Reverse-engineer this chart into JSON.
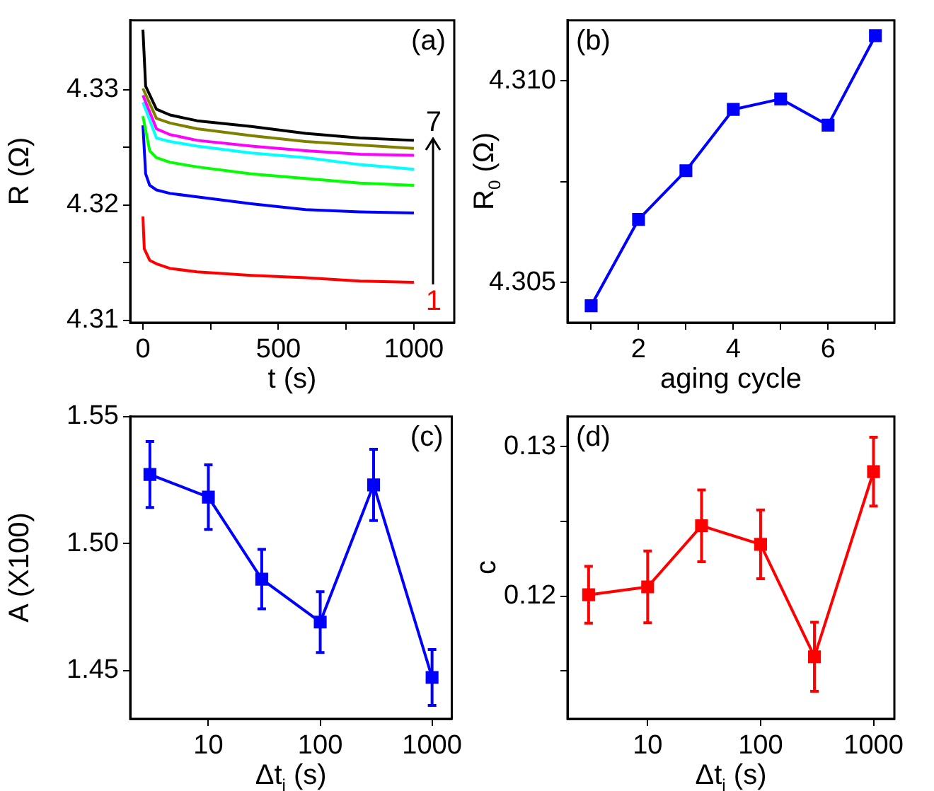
{
  "chart_data": [
    {
      "type": "line",
      "xlabel": "t (s)",
      "ylabel": "R (Ω)",
      "annotations": [
        "(a)"
      ],
      "marker": "none",
      "line_style": "solid",
      "grid": false,
      "xlim": [
        -47,
        1149
      ],
      "xticks": [
        0,
        {
          "value": 250,
          "label": null
        },
        500,
        {
          "value": 750,
          "label": null
        },
        1000
      ],
      "ylim": [
        4.3098,
        4.336
      ],
      "yticks": [
        4.31,
        {
          "value": 4.315,
          "label": null
        },
        4.32,
        {
          "value": 4.325,
          "label": null
        },
        4.33
      ],
      "series": [
        {
          "name": "7",
          "color": "#000000",
          "x": [
            0,
            10,
            50,
            100,
            200,
            400,
            600,
            800,
            1000
          ],
          "values": [
            4.3352,
            4.3303,
            4.3283,
            4.3278,
            4.3273,
            4.3268,
            4.3262,
            4.3258,
            4.3256
          ]
        },
        {
          "color": "#808000",
          "x": [
            0,
            50,
            100,
            200,
            400,
            600,
            800,
            1000
          ],
          "values": [
            4.3301,
            4.3275,
            4.3271,
            4.3266,
            4.326,
            4.3255,
            4.3252,
            4.3249
          ]
        },
        {
          "color": "#ff00ff",
          "x": [
            0,
            50,
            100,
            200,
            400,
            600,
            800,
            1000
          ],
          "values": [
            4.3295,
            4.3266,
            4.3261,
            4.3256,
            4.3251,
            4.3247,
            4.3244,
            4.3243
          ]
        },
        {
          "color": "#00ffff",
          "x": [
            0,
            50,
            100,
            200,
            400,
            600,
            800,
            1000
          ],
          "values": [
            4.3289,
            4.3258,
            4.3255,
            4.3251,
            4.3245,
            4.3241,
            4.3235,
            4.3231
          ]
        },
        {
          "color": "#00ff00",
          "x": [
            0,
            25,
            50,
            100,
            200,
            400,
            600,
            800,
            1000
          ],
          "values": [
            4.3277,
            4.3247,
            4.3241,
            4.3237,
            4.3233,
            4.3227,
            4.3223,
            4.3219,
            4.3217
          ]
        },
        {
          "color": "#0000ff",
          "x": [
            0,
            10,
            25,
            50,
            100,
            200,
            400,
            600,
            800,
            1000
          ],
          "values": [
            4.3269,
            4.3227,
            4.3217,
            4.3213,
            4.321,
            4.3207,
            4.3201,
            4.3196,
            4.3194,
            4.3193
          ]
        },
        {
          "name": "1",
          "color": "#ff0000",
          "x": [
            0,
            5,
            25,
            50,
            100,
            200,
            400,
            600,
            800,
            1000
          ],
          "values": [
            4.319,
            4.3162,
            4.3152,
            4.3149,
            4.3145,
            4.3142,
            4.3139,
            4.3137,
            4.3134,
            4.3133
          ]
        }
      ]
    },
    {
      "type": "line",
      "xlabel": "aging cycle",
      "ylabel": "R$_{0}$ (Ω)",
      "annotations": [
        "(b)"
      ],
      "marker": "square",
      "line_style": "solid",
      "grid": false,
      "color": "#0000ff",
      "xlim": [
        0.5,
        7.4
      ],
      "xticks": [
        {
          "value": 1,
          "label": null
        },
        2,
        {
          "value": 3,
          "label": null
        },
        4,
        {
          "value": 5,
          "label": null
        },
        6,
        {
          "value": 7,
          "label": null
        }
      ],
      "ylim": [
        4.304,
        4.3115
      ],
      "yticks": [
        {
          "value": 4.305,
          "label": "4.305"
        },
        {
          "value": 4.3075,
          "label": null
        },
        {
          "value": 4.31,
          "label": "4.310"
        }
      ],
      "x": [
        1,
        2,
        3,
        4,
        5,
        6,
        7
      ],
      "values": [
        4.30442,
        4.30656,
        4.30777,
        4.30929,
        4.30955,
        4.3089,
        4.31112
      ]
    },
    {
      "type": "line",
      "xlabel": "Δt$_{i}$ (s)",
      "ylabel": "A (X100)",
      "annotations": [
        "(c)"
      ],
      "marker": "square",
      "line_style": "solid",
      "grid": false,
      "color": "#0000ff",
      "log": "x",
      "xlim": [
        2,
        1500
      ],
      "xticks": [
        10,
        100,
        1000
      ],
      "ylim": [
        1.431,
        1.55
      ],
      "yticks": [
        {
          "value": 1.45,
          "label": "1.45"
        },
        {
          "value": 1.5,
          "label": "1.50"
        },
        {
          "value": 1.55,
          "label": "1.55"
        }
      ],
      "x": [
        3,
        10,
        30,
        100,
        300,
        1000
      ],
      "values": [
        1.5272,
        1.5183,
        1.486,
        1.4691,
        1.5231,
        1.4473
      ],
      "errors": [
        0.013,
        0.0127,
        0.0117,
        0.012,
        0.014,
        0.011
      ]
    },
    {
      "type": "line",
      "xlabel": "Δt$_{i}$ (s)",
      "ylabel": "c",
      "annotations": [
        "(d)"
      ],
      "marker": "square",
      "line_style": "solid",
      "grid": false,
      "color": "#ff0000",
      "log": "x",
      "xlim": [
        1.95,
        1530
      ],
      "xticks": [
        10,
        100,
        1000
      ],
      "ylim": [
        0.1118,
        0.132
      ],
      "yticks": [
        {
          "value": 0.115,
          "label": null
        },
        0.12,
        {
          "value": 0.125,
          "label": null
        },
        0.13
      ],
      "x": [
        3,
        10,
        30,
        100,
        300,
        1000
      ],
      "values": [
        0.12009,
        0.12062,
        0.1247,
        0.12346,
        0.11595,
        0.12832
      ],
      "errors": [
        0.0019,
        0.0024,
        0.0024,
        0.0023,
        0.0023,
        0.0023
      ]
    }
  ]
}
